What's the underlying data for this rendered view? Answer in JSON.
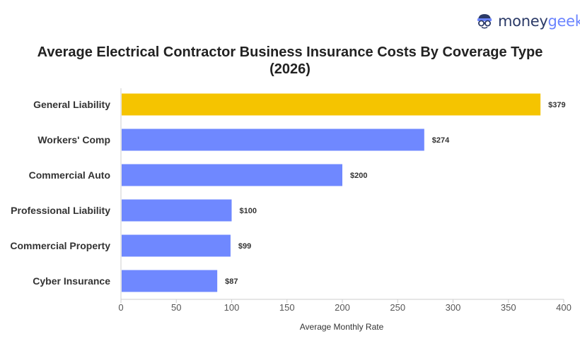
{
  "brand": {
    "name_part1": "money",
    "name_part2": "geek",
    "logo_icon": "nerd-glasses-icon",
    "color_dark": "#2b3a67",
    "color_light": "#6b84ff"
  },
  "chart_data": {
    "type": "bar",
    "orientation": "horizontal",
    "title_line1": "Average Electrical Contractor Business Insurance Costs By Coverage Type",
    "title_line2": "(2026)",
    "categories": [
      "General Liability",
      "Workers' Comp",
      "Commercial Auto",
      "Professional Liability",
      "Commercial Property",
      "Cyber Insurance"
    ],
    "values": [
      379,
      274,
      200,
      100,
      99,
      87
    ],
    "value_labels": [
      "$379",
      "$274",
      "$200",
      "$100",
      "$99",
      "$87"
    ],
    "xlabel": "Average Monthly Rate",
    "ylabel": "",
    "xlim": [
      0,
      400
    ],
    "xticks": [
      0,
      50,
      100,
      150,
      200,
      250,
      300,
      350,
      400
    ],
    "grid": false,
    "colors": {
      "highlight": "#f5c400",
      "default": "#6f88ff",
      "axis": "#cccccc"
    }
  }
}
